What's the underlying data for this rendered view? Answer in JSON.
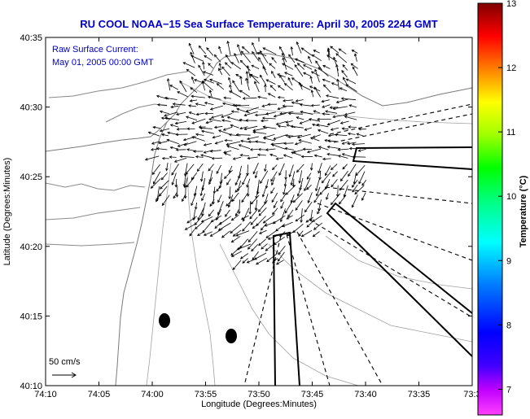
{
  "chart_data": {
    "type": "vector-field",
    "title": "RU COOL  NOAA−15 Sea Surface Temperature:  April 30, 2005 2244 GMT",
    "annotation_lines": [
      "Raw Surface Current:",
      "May 01, 2005 00:00 GMT"
    ],
    "scale_label": "50 cm/s",
    "xlabel": "Longitude (Degrees:Minutes)",
    "ylabel": "Latitude (Degrees:Minutes)",
    "x_ticks": [
      "74:10",
      "74:05",
      "74:00",
      "73:55",
      "73:50",
      "73:45",
      "73:40",
      "73:35",
      "73:3"
    ],
    "y_ticks": [
      "40:35",
      "40:30",
      "40:25",
      "40:20",
      "40:15",
      "40:10"
    ],
    "colorbar": {
      "label": "Temperature (°C)",
      "ticks": [
        "13",
        "12",
        "11",
        "10",
        "9",
        "8",
        "7"
      ],
      "range": [
        6.6,
        13
      ],
      "colors": [
        "#ff00ff",
        "#8000ff",
        "#0000ff",
        "#0080ff",
        "#00ffff",
        "#00ff80",
        "#00ff00",
        "#80ff00",
        "#ffff00",
        "#ff8000",
        "#ff0000",
        "#b00000",
        "#800000"
      ]
    }
  }
}
